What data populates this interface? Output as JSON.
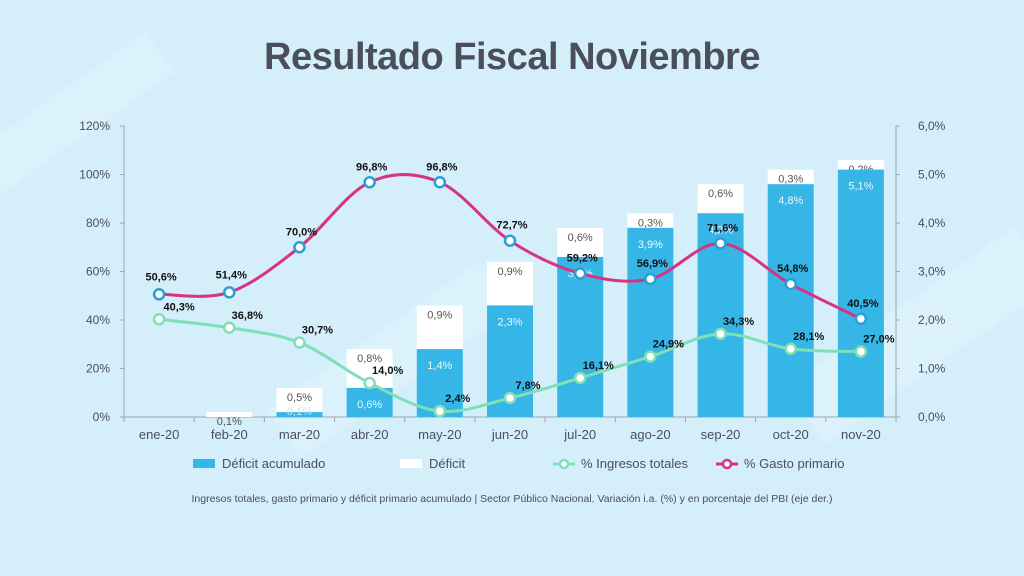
{
  "title": "Resultado Fiscal Noviembre",
  "caption": "Ingresos totales, gasto primario y déficit primario acumulado | Sector Público Nacional. Variación i.a. (%) y en porcentaje del PBI (eje der.)",
  "colors": {
    "background": "#d4eefa",
    "deficit_acumulado": "#36b6e6",
    "deficit": "#ffffff",
    "ingresos": "#7fe0b8",
    "gasto": "#d63384",
    "text": "#4a4f5b"
  },
  "chart_data": {
    "type": "bar+line",
    "categories": [
      "ene-20",
      "feb-20",
      "mar-20",
      "abr-20",
      "may-20",
      "jun-20",
      "jul-20",
      "ago-20",
      "sep-20",
      "oct-20",
      "nov-20"
    ],
    "left_axis": {
      "min": 0,
      "max": 120,
      "ticks": [
        "0%",
        "20%",
        "40%",
        "60%",
        "80%",
        "100%",
        "120%"
      ]
    },
    "right_axis": {
      "min": 0,
      "max": 6,
      "ticks": [
        "0,0%",
        "1,0%",
        "2,0%",
        "3,0%",
        "4,0%",
        "5,0%",
        "6,0%"
      ]
    },
    "grid": false,
    "legend_position": "bottom",
    "series": [
      {
        "name": "Déficit acumulado",
        "kind": "bar",
        "axis": "right",
        "values": [
          0,
          0,
          0.1,
          0.6,
          1.4,
          2.3,
          3.3,
          3.9,
          4.2,
          4.8,
          5.1
        ],
        "labels": [
          "",
          "",
          "0,1%",
          "0,6%",
          "1,4%",
          "2,3%",
          "3,3%",
          "3,9%",
          "4,2%",
          "4,8%",
          "5,1%"
        ]
      },
      {
        "name": "Déficit",
        "kind": "bar-stacked",
        "axis": "right",
        "values": [
          0,
          0.1,
          0.5,
          0.8,
          0.9,
          0.9,
          0.6,
          0.3,
          0.6,
          0.3,
          0.2
        ],
        "labels": [
          "",
          "0,1%",
          "0,5%",
          "0,8%",
          "0,9%",
          "0,9%",
          "0,6%",
          "0,3%",
          "0,6%",
          "0,3%",
          "0,2%"
        ]
      },
      {
        "name": "% Ingresos totales",
        "kind": "line",
        "axis": "left",
        "values": [
          40.3,
          36.8,
          30.7,
          14.0,
          2.4,
          7.8,
          16.1,
          24.9,
          34.3,
          28.1,
          27.0
        ],
        "labels": [
          "40,3%",
          "36,8%",
          "30,7%",
          "14,0%",
          "2,4%",
          "7,8%",
          "16,1%",
          "24,9%",
          "34,3%",
          "28,1%",
          "27,0%"
        ]
      },
      {
        "name": "% Gasto primario",
        "kind": "line",
        "axis": "left",
        "values": [
          50.6,
          51.4,
          70.0,
          96.8,
          96.8,
          72.7,
          59.2,
          56.9,
          71.6,
          54.8,
          40.5
        ],
        "labels": [
          "50,6%",
          "51,4%",
          "70,0%",
          "96,8%",
          "96,8%",
          "72,7%",
          "59,2%",
          "56,9%",
          "71,6%",
          "54,8%",
          "40,5%"
        ]
      }
    ]
  }
}
